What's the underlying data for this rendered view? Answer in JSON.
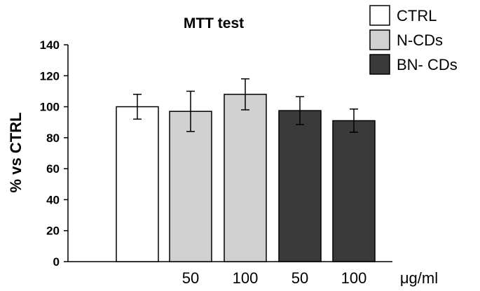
{
  "chart_data": {
    "type": "bar",
    "title": "MTT test",
    "ylabel": "% vs CTRL",
    "xlabel": "",
    "unit_label": "μg/ml",
    "ylim": [
      0,
      140
    ],
    "yticks": [
      0,
      20,
      40,
      60,
      80,
      100,
      120,
      140
    ],
    "categories": [
      "",
      "50",
      "100",
      "50",
      "100"
    ],
    "bars": [
      {
        "series": "CTRL",
        "label": "",
        "value": 100,
        "error": 8
      },
      {
        "series": "N-CDs",
        "label": "50",
        "value": 97,
        "error": 13
      },
      {
        "series": "N-CDs",
        "label": "100",
        "value": 108,
        "error": 10
      },
      {
        "series": "BN- CDs",
        "label": "50",
        "value": 97.5,
        "error": 9
      },
      {
        "series": "BN- CDs",
        "label": "100",
        "value": 91,
        "error": 7.5
      }
    ],
    "legend": [
      {
        "name": "CTRL",
        "color": "#ffffff"
      },
      {
        "name": "N-CDs",
        "color": "#d0d0d0"
      },
      {
        "name": "BN- CDs",
        "color": "#3a3a3a"
      }
    ],
    "legend_position": "top-right",
    "grid": false
  }
}
